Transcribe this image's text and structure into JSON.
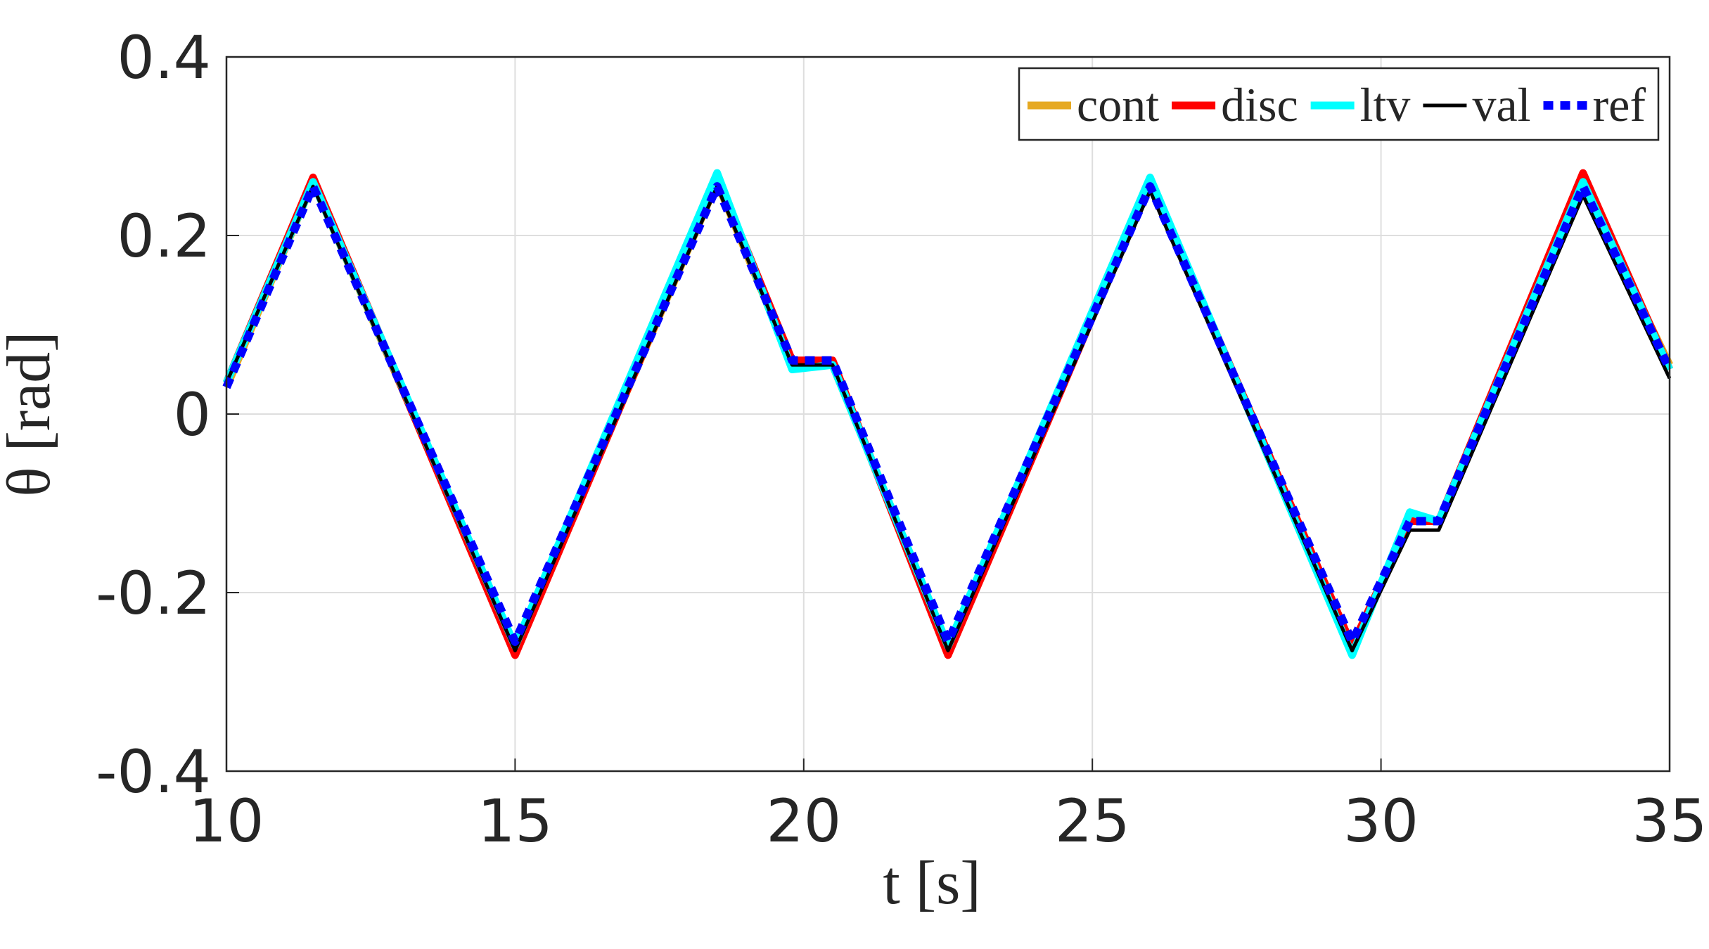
{
  "chart_data": {
    "type": "line",
    "x_label": "t [s]",
    "y_label": "θ [rad]",
    "x": [
      10,
      11.5,
      15,
      18.5,
      19.8,
      20.5,
      22.5,
      26,
      29.5,
      30.5,
      31,
      33.5,
      35
    ],
    "series": [
      {
        "name": "cont",
        "color": "#e6a922",
        "linestyle": "solid",
        "values": [
          0.03,
          0.26,
          -0.265,
          0.26,
          0.055,
          0.055,
          -0.26,
          0.26,
          -0.26,
          -0.12,
          -0.12,
          0.255,
          0.055
        ]
      },
      {
        "name": "disc",
        "color": "#ff0000",
        "linestyle": "solid",
        "values": [
          0.035,
          0.265,
          -0.27,
          0.265,
          0.06,
          0.06,
          -0.27,
          0.26,
          -0.26,
          -0.12,
          -0.12,
          0.27,
          0.05
        ]
      },
      {
        "name": "ltv",
        "color": "#00ffff",
        "linestyle": "solid",
        "values": [
          0.035,
          0.26,
          -0.26,
          0.27,
          0.05,
          0.055,
          -0.26,
          0.265,
          -0.27,
          -0.11,
          -0.12,
          0.26,
          0.05
        ]
      },
      {
        "name": "val",
        "color": "#000000",
        "linestyle": "thin",
        "values": [
          0.035,
          0.255,
          -0.265,
          0.255,
          0.055,
          0.055,
          -0.265,
          0.25,
          -0.265,
          -0.13,
          -0.13,
          0.245,
          0.04
        ]
      },
      {
        "name": "ref",
        "color": "#0000ff",
        "linestyle": "dotted",
        "values": [
          0.03,
          0.255,
          -0.255,
          0.255,
          0.06,
          0.06,
          -0.255,
          0.255,
          -0.255,
          -0.12,
          -0.12,
          0.255,
          0.05
        ]
      }
    ],
    "xlim": [
      10,
      35
    ],
    "xticks": [
      10,
      15,
      20,
      25,
      30,
      35
    ],
    "ylim": [
      -0.4,
      0.4
    ],
    "yticks": [
      -0.4,
      -0.2,
      0,
      0.2,
      0.4
    ],
    "grid": true,
    "legend": "top-right"
  }
}
